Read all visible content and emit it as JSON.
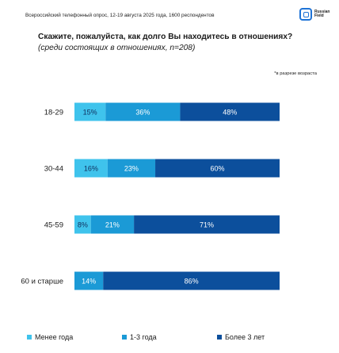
{
  "survey_note": "Всероссийский телефонный опрос, 12-19 августа 2025 года, 1600 респондентов",
  "logo": {
    "name": "Russian\nField"
  },
  "question": {
    "main": "Скажите, пожалуйста, как долго Вы находитесь в отношениях?",
    "sub": " (среди состоящих в отношениях, n=208)"
  },
  "breakdown_note": "*в разрезе возраста",
  "colors": {
    "less_year": "#3fc3ec",
    "one_three": "#1b9ad6",
    "over_three": "#0c4f9c"
  },
  "chart_data": {
    "type": "bar",
    "orientation": "horizontal",
    "stacked": true,
    "categories": [
      "18-29",
      "30-44",
      "45-59",
      "60 и старше"
    ],
    "series": [
      {
        "name": "Менее года",
        "values": [
          15,
          16,
          8,
          0
        ],
        "color": "#3fc3ec"
      },
      {
        "name": "1-3 года",
        "values": [
          36,
          23,
          21,
          14
        ],
        "color": "#1b9ad6"
      },
      {
        "name": "Более 3 лет",
        "values": [
          48,
          60,
          71,
          86
        ],
        "color": "#0c4f9c"
      }
    ],
    "value_suffix": "%",
    "legend_position": "bottom"
  }
}
